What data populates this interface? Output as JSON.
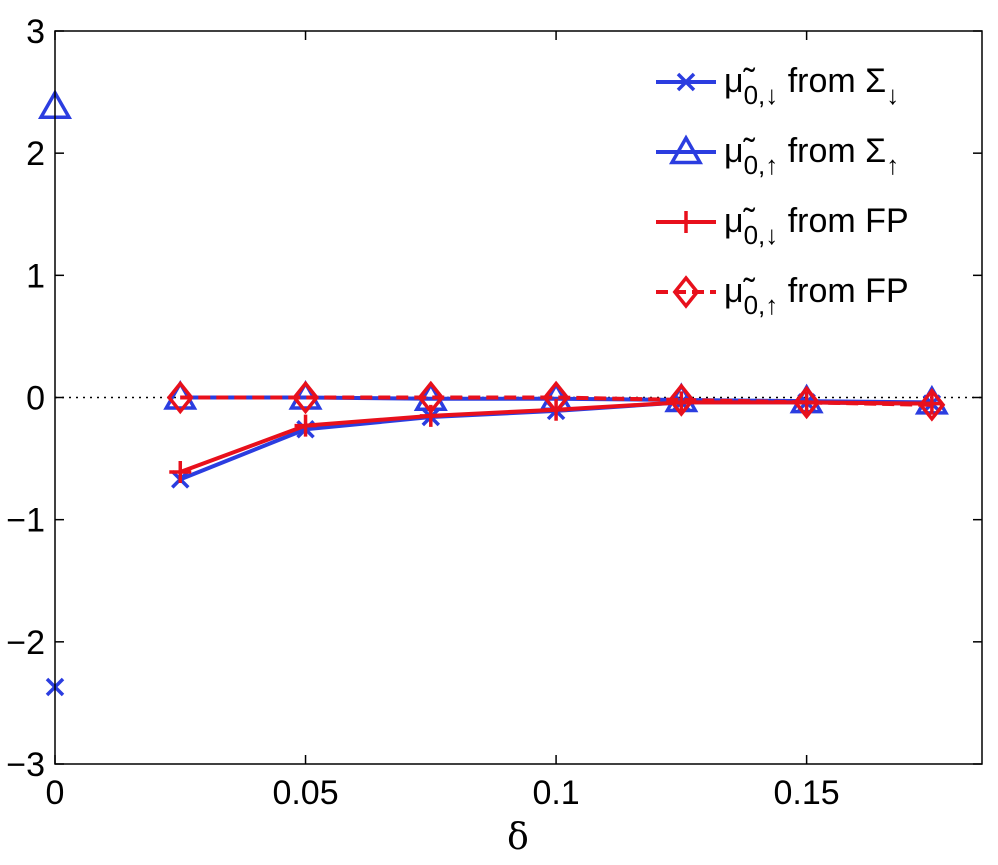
{
  "chart_data": {
    "type": "line",
    "xlabel": "δ",
    "ylabel": "",
    "xlim": [
      0,
      0.185
    ],
    "ylim": [
      -3,
      3
    ],
    "x_ticks": [
      0,
      0.05,
      0.1,
      0.15
    ],
    "x_tick_labels": [
      "0",
      "0.05",
      "0.1",
      "0.15"
    ],
    "y_ticks": [
      -3,
      -2,
      -1,
      0,
      1,
      2,
      3
    ],
    "y_tick_labels": [
      "−3",
      "−2",
      "−1",
      "0",
      "1",
      "2",
      "3"
    ],
    "grid": false,
    "reference_line": {
      "y": 0,
      "style": "dotted",
      "color": "#000000"
    },
    "legend_position": "top-right",
    "series": [
      {
        "name": "μ̃0,↓ from Σ↓",
        "legend": {
          "main": "μ̃",
          "sub": "0,↓",
          "rest": " from Σ",
          "sub2": "↓"
        },
        "color": "#2b3de0",
        "marker": "x",
        "line": "solid",
        "points": [
          [
            0,
            -2.37
          ]
        ],
        "line_x": [
          0.025,
          0.05,
          0.075,
          0.1,
          0.125,
          0.15,
          0.175
        ],
        "line_y": [
          -0.67,
          -0.26,
          -0.16,
          -0.11,
          -0.04,
          -0.04,
          -0.05
        ]
      },
      {
        "name": "μ̃0,↑ from Σ↑",
        "legend": {
          "main": "μ̃",
          "sub": "0,↑",
          "rest": " from Σ",
          "sub2": "↑"
        },
        "color": "#2b3de0",
        "marker": "triangle",
        "line": "solid",
        "points": [
          [
            0,
            2.38
          ]
        ],
        "line_x": [
          0.025,
          0.05,
          0.075,
          0.1,
          0.125,
          0.15,
          0.175
        ],
        "line_y": [
          0.0,
          0.0,
          -0.01,
          -0.01,
          -0.02,
          -0.03,
          -0.04
        ]
      },
      {
        "name": "μ̃0,↓ from FP",
        "legend": {
          "main": "μ̃",
          "sub": "0,↓",
          "rest": " from FP",
          "sub2": ""
        },
        "color": "#e8101c",
        "marker": "plus",
        "line": "solid",
        "points": [],
        "line_x": [
          0.025,
          0.05,
          0.075,
          0.1,
          0.125,
          0.15,
          0.175
        ],
        "line_y": [
          -0.61,
          -0.23,
          -0.15,
          -0.1,
          -0.04,
          -0.04,
          -0.05
        ]
      },
      {
        "name": "μ̃0,↑ from FP",
        "legend": {
          "main": "μ̃",
          "sub": "0,↑",
          "rest": " from FP",
          "sub2": ""
        },
        "color": "#e8101c",
        "marker": "diamond",
        "line": "dashed",
        "points": [],
        "line_x": [
          0.025,
          0.05,
          0.075,
          0.1,
          0.125,
          0.15,
          0.175
        ],
        "line_y": [
          0.0,
          0.0,
          0.0,
          0.0,
          -0.02,
          -0.04,
          -0.06
        ]
      }
    ]
  }
}
